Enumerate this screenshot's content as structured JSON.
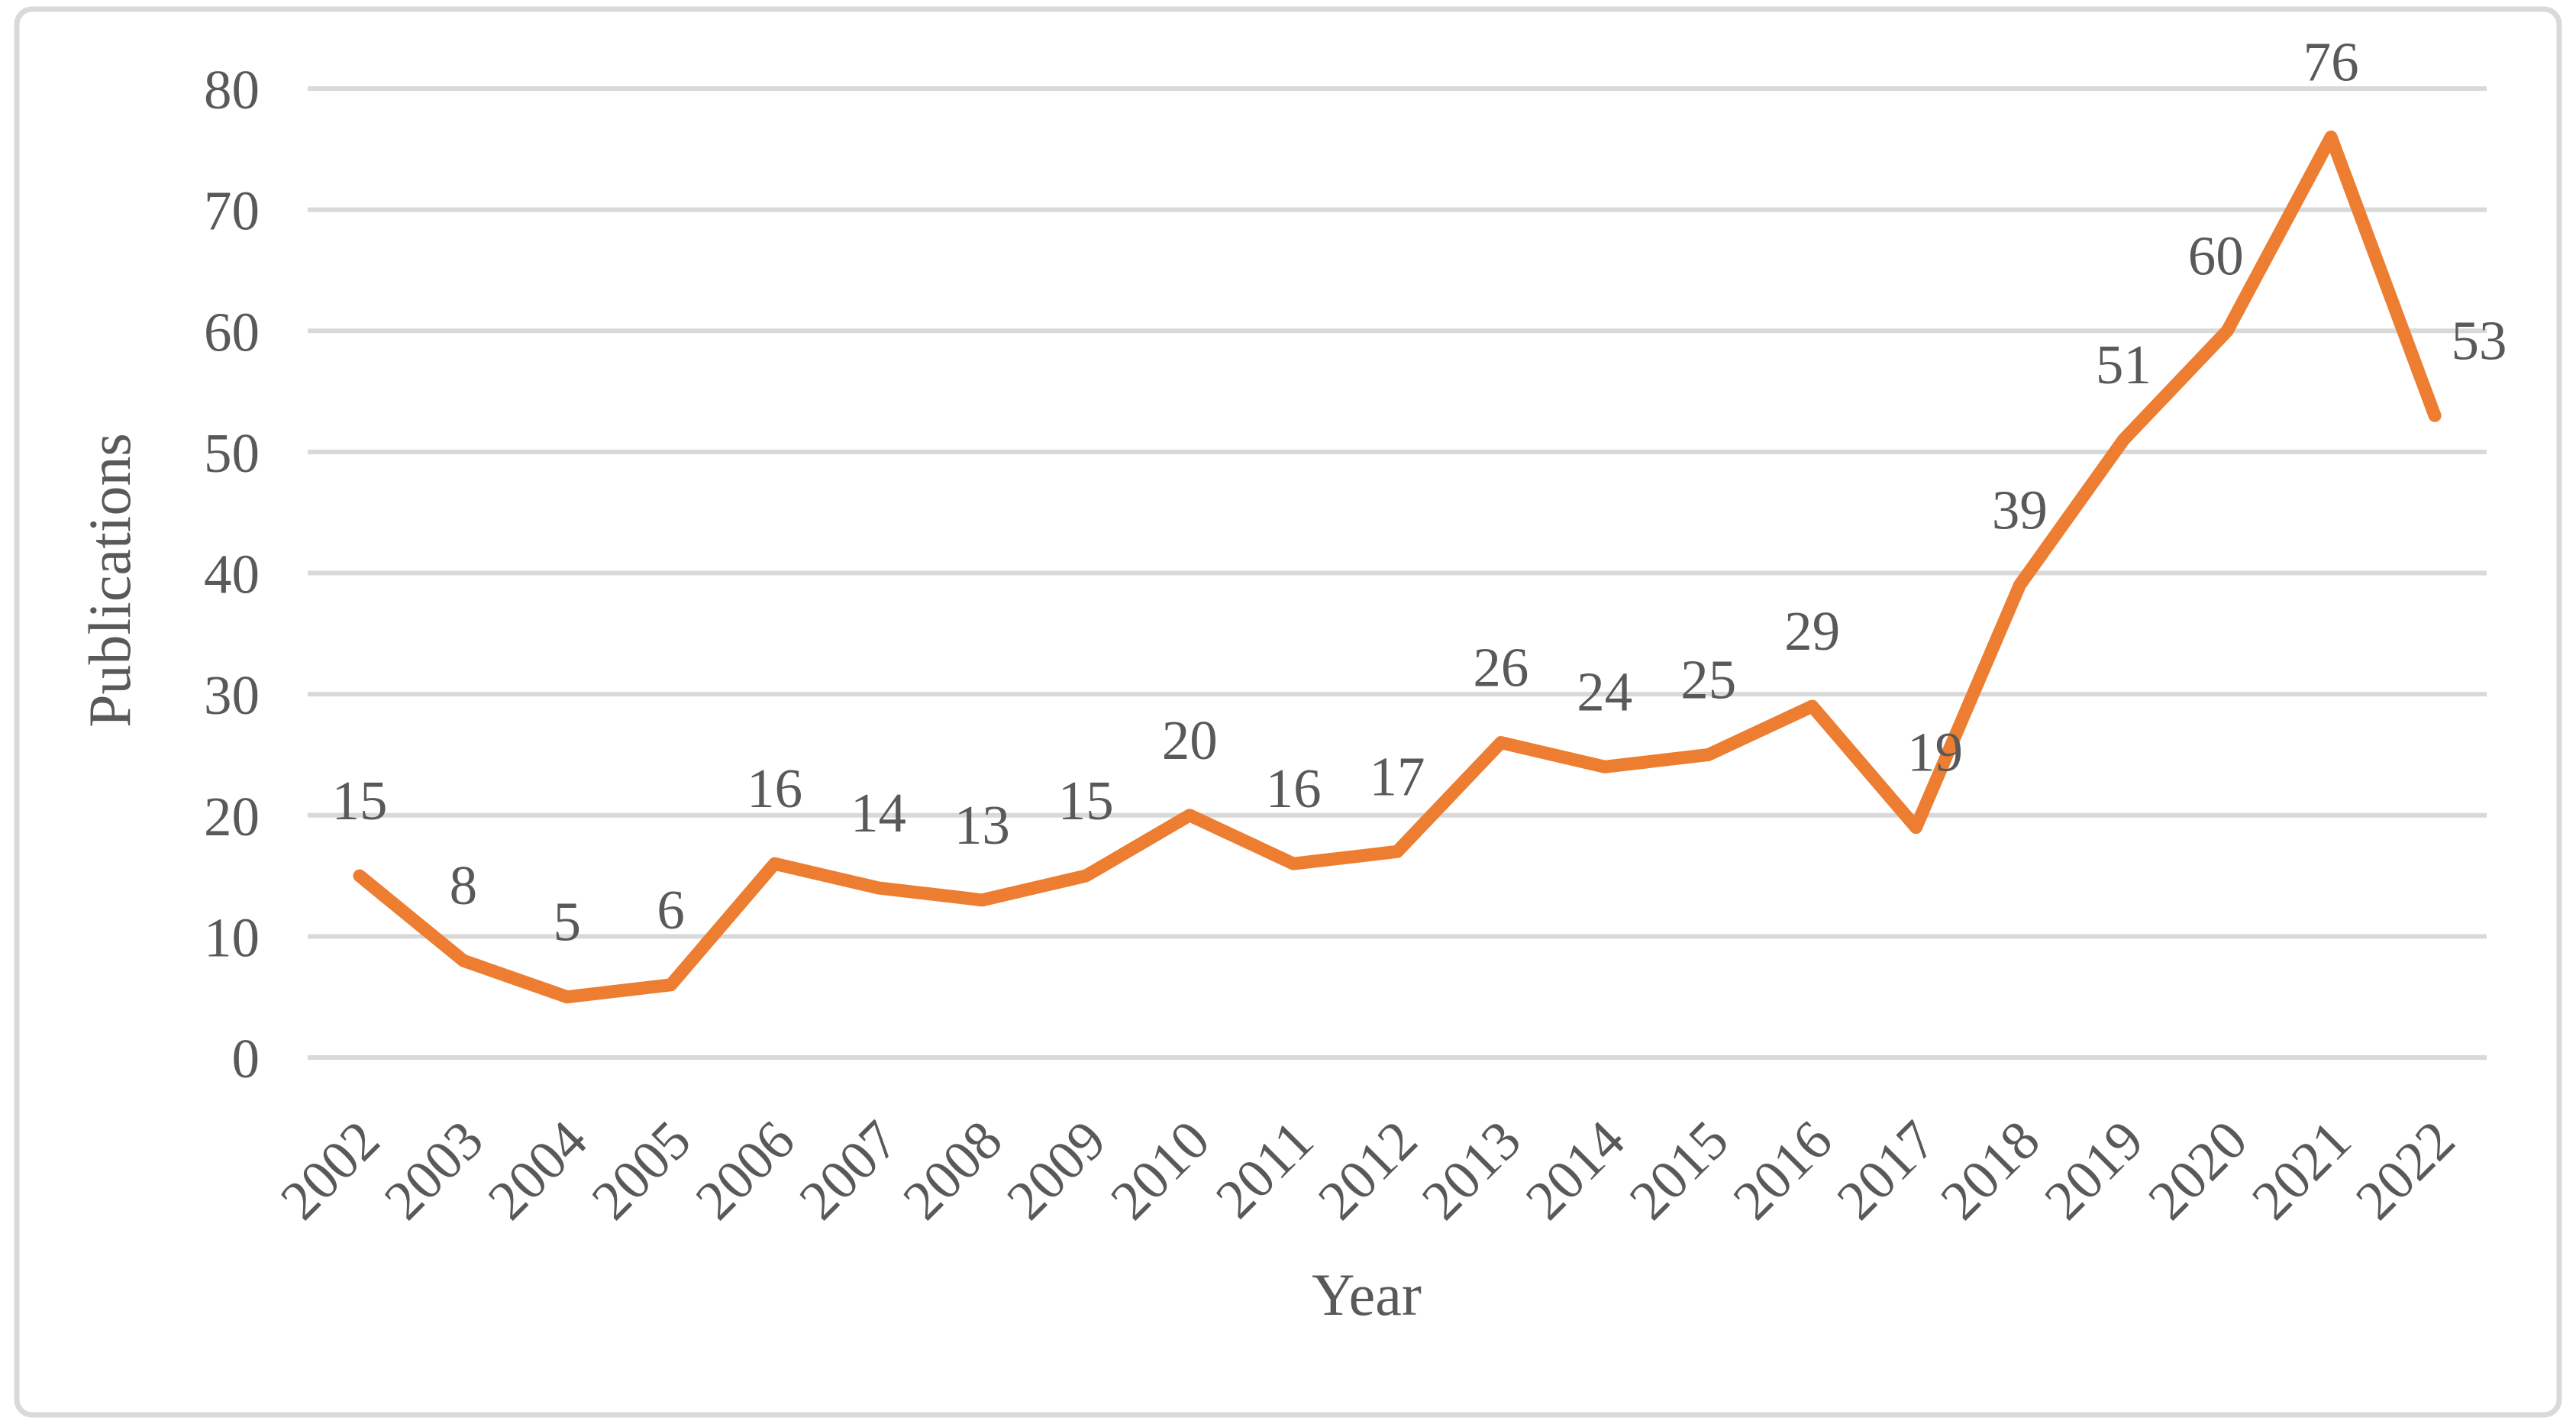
{
  "chart_data": {
    "type": "line",
    "title": "",
    "xlabel": "Year",
    "ylabel": "Publications",
    "categories": [
      "2002",
      "2003",
      "2004",
      "2005",
      "2006",
      "2007",
      "2008",
      "2009",
      "2010",
      "2011",
      "2012",
      "2013",
      "2014",
      "2015",
      "2016",
      "2017",
      "2018",
      "2019",
      "2020",
      "2021",
      "2022"
    ],
    "values": [
      15,
      8,
      5,
      6,
      16,
      14,
      13,
      15,
      20,
      16,
      17,
      26,
      24,
      25,
      29,
      19,
      39,
      51,
      60,
      76,
      53
    ],
    "data_labels": [
      "15",
      "8",
      "5",
      "6",
      "16",
      "14",
      "13",
      "15",
      "20",
      "16",
      "17",
      "26",
      "24",
      "25",
      "29",
      "19",
      "39",
      "51",
      "60",
      "76",
      "53"
    ],
    "yticks": [
      0,
      10,
      20,
      30,
      40,
      50,
      60,
      70,
      80
    ],
    "ylim": [
      0,
      80
    ],
    "grid": "horizontal",
    "legend": "none",
    "x_tick_rotation_deg": 45
  },
  "colors": {
    "series_line": "#ED7D31",
    "gridline": "#D9D9D9",
    "chart_border": "#D9D9D9",
    "text": "#595959",
    "background": "#FFFFFF"
  }
}
